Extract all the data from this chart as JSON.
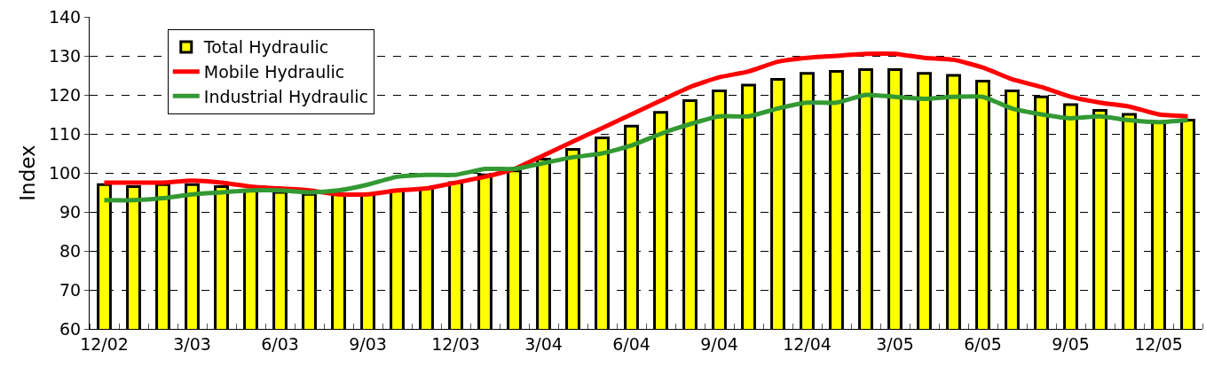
{
  "chart_data": {
    "type": "bar",
    "ylabel": "Index",
    "categories": [
      "12/02",
      null,
      null,
      "3/03",
      null,
      null,
      "6/03",
      null,
      null,
      "9/03",
      null,
      null,
      "12/03",
      null,
      null,
      "3/04",
      null,
      null,
      "6/04",
      null,
      null,
      "9/04",
      null,
      null,
      "12/04",
      null,
      null,
      "3/05",
      null,
      null,
      "6/05",
      null,
      null,
      "9/05",
      null,
      null,
      "12/05",
      null
    ],
    "series": [
      {
        "name": "Total Hydraulic",
        "color": "#ffff00",
        "values": [
          97,
          96.5,
          97,
          97,
          96.5,
          95.5,
          95,
          94.5,
          94.5,
          94.5,
          95.5,
          96,
          97.5,
          99.5,
          100.5,
          103.5,
          106,
          109,
          112,
          115.5,
          118.5,
          121,
          122.5,
          124,
          125.5,
          126,
          126.5,
          126.5,
          125.5,
          125,
          123.5,
          121,
          119.5,
          117.5,
          116,
          115,
          113,
          113.5
        ]
      },
      {
        "name": "Mobile Hydraulic",
        "type": "line",
        "color": "#ff0000",
        "values": [
          97.5,
          97.5,
          97.5,
          98,
          97.5,
          96.5,
          96,
          95.5,
          94.5,
          94.5,
          95.5,
          96,
          97.5,
          99,
          101,
          104.5,
          108,
          111.5,
          115,
          118.5,
          122,
          124.5,
          126,
          128.5,
          129.5,
          130,
          130.5,
          130.5,
          129.5,
          129,
          127,
          124,
          122,
          119.5,
          118,
          117,
          115,
          114.5
        ]
      },
      {
        "name": "Industrial Hydraulic",
        "type": "line",
        "color": "#339933",
        "values": [
          93,
          93,
          93.5,
          94.5,
          95,
          95.5,
          95.5,
          95,
          95.5,
          97,
          99,
          99.5,
          99.5,
          101,
          101,
          102.5,
          104,
          105,
          107,
          110,
          112.5,
          114.5,
          114.5,
          116.5,
          118,
          118,
          120,
          119.5,
          119,
          119.5,
          119.5,
          116.5,
          115,
          114,
          114.5,
          113.5,
          113,
          113.5
        ]
      }
    ],
    "ylim": [
      60,
      140
    ],
    "yticks": [
      60,
      70,
      80,
      90,
      100,
      110,
      120,
      130,
      140
    ],
    "grid": "y",
    "legend": "top left",
    "marker": "none",
    "line_style": "solid"
  }
}
